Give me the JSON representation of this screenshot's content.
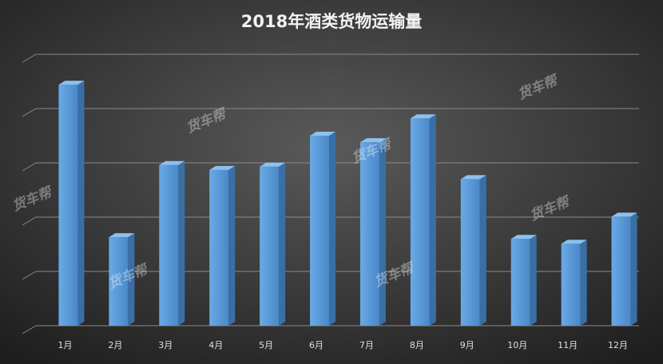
{
  "chart_data": {
    "type": "bar",
    "title": "2018年酒类货物运输量",
    "categories": [
      "1月",
      "2月",
      "3月",
      "4月",
      "5月",
      "6月",
      "7月",
      "8月",
      "9月",
      "10月",
      "11月",
      "12月"
    ],
    "values": [
      4.44,
      1.63,
      2.96,
      2.87,
      2.93,
      3.5,
      3.38,
      3.82,
      2.7,
      1.6,
      1.51,
      2.01
    ],
    "color": "#5b9bd5",
    "ylim": [
      0,
      5
    ],
    "yticks": [
      0,
      1,
      2,
      3,
      4,
      5
    ],
    "grid": true,
    "show_tick_labels": false,
    "watermark": "货车帮"
  }
}
